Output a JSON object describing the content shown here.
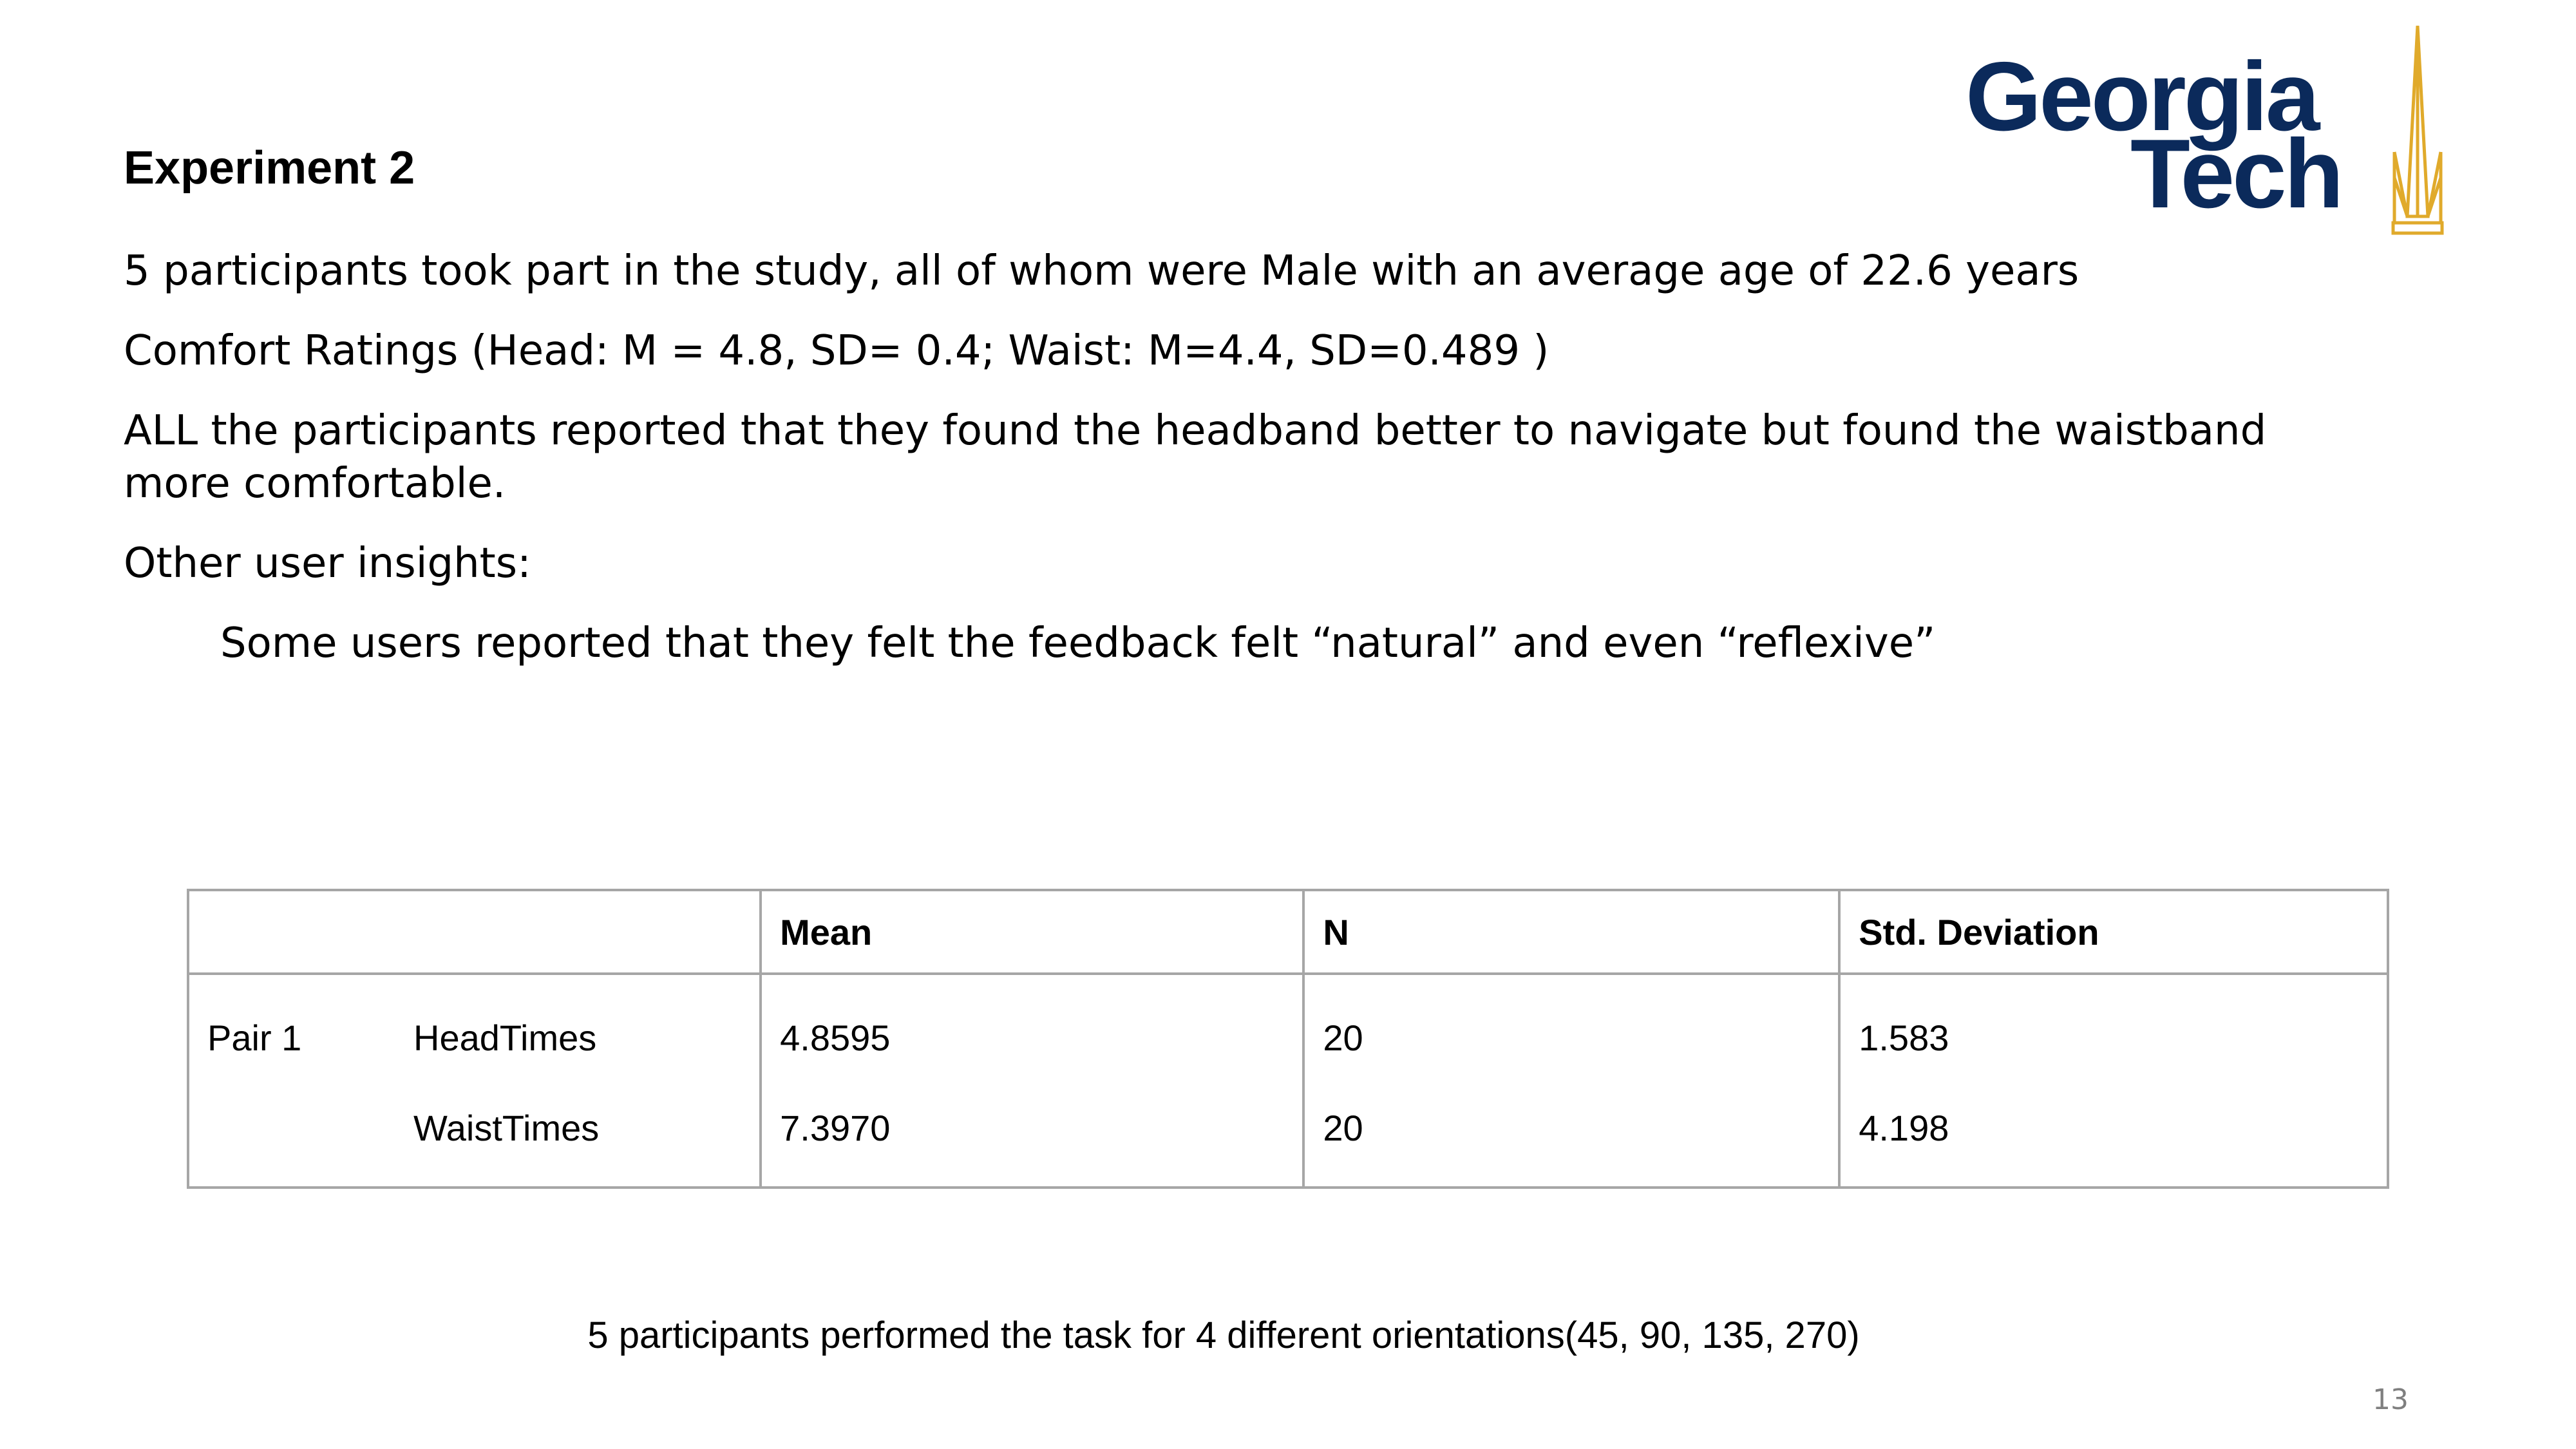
{
  "logo": {
    "line1": "Georgia",
    "line2": "Tech",
    "primary_color": "#0b2a5b",
    "accent_color": "#e0aa2b",
    "spire_icon": "tech-tower-spire-icon"
  },
  "title": "Experiment 2",
  "bullets": [
    "5 participants took part in the study, all of whom were Male with an average age of 22.6 years",
    "Comfort Ratings (Head: M = 4.8, SD= 0.4; Waist: M=4.4, SD=0.489 )",
    "ALL the participants reported that they found the headband better to navigate but found the waistband more comfortable.",
    "Other user insights:",
    "Some users reported that they felt the feedback felt “natural” and even “reflexive”"
  ],
  "table": {
    "headers": [
      "",
      "Mean",
      "N",
      "Std. Deviation"
    ],
    "group_label": "Pair 1",
    "rows": [
      {
        "label": "HeadTimes",
        "mean": "4.8595",
        "n": "20",
        "sd": "1.583"
      },
      {
        "label": "WaistTimes",
        "mean": "7.3970",
        "n": "20",
        "sd": "4.198"
      }
    ]
  },
  "caption": "5 participants performed the task for 4 different orientations(45, 90, 135, 270)",
  "page_number": "13"
}
